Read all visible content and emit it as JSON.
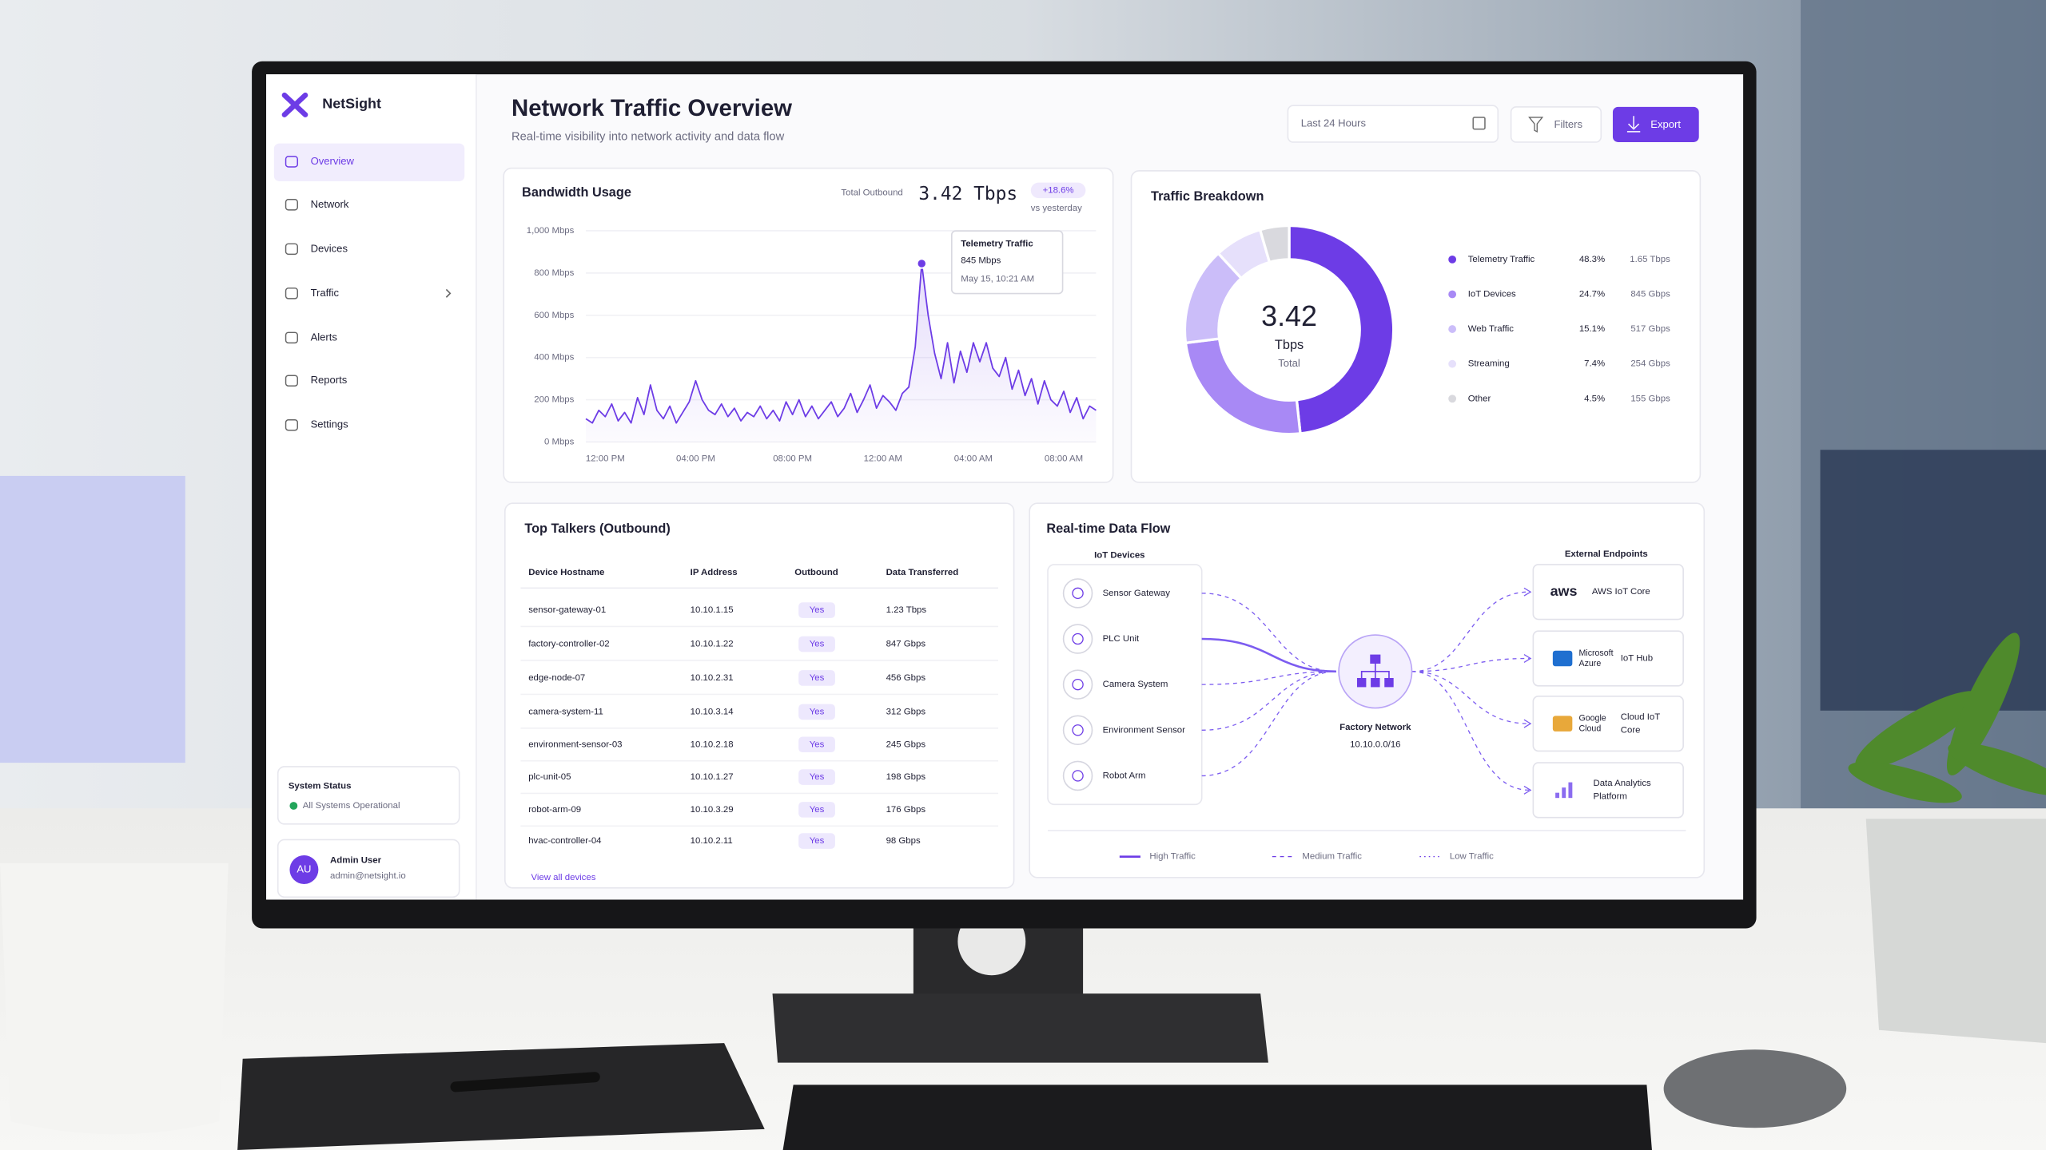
{
  "sidebar": {
    "brand": "NetSight",
    "nav": [
      "Overview",
      "Network",
      "Devices",
      "Traffic",
      "Alerts",
      "Reports",
      "Settings"
    ],
    "status": {
      "title": "System Status",
      "text": "All Systems Operational"
    },
    "user": {
      "initials": "AU",
      "name": "Admin User",
      "email": "admin@netsight.io"
    }
  },
  "header": {
    "title": "Network Traffic Overview",
    "subtitle": "Real-time visibility into network activity and data flow",
    "range": "Last 24 Hours",
    "filters": "Filters",
    "export": "Export"
  },
  "chart_data": [
    {
      "type": "line",
      "title": "Bandwidth Usage",
      "summary": {
        "label": "Total Outbound",
        "value": "3.42 Tbps",
        "change": "+18.6%",
        "note": "vs yesterday"
      },
      "categories": [
        null,
        null,
        null,
        "12:00 PM",
        null,
        null,
        null,
        null,
        null,
        null,
        null,
        null,
        null,
        null,
        null,
        null,
        null,
        "04:00 PM",
        null,
        null,
        null,
        null,
        null,
        null,
        null,
        null,
        null,
        null,
        null,
        null,
        null,
        null,
        "08:00 PM",
        null,
        null,
        null,
        null,
        null,
        null,
        null,
        null,
        null,
        null,
        null,
        null,
        null,
        "12:00 AM",
        null,
        null,
        null,
        null,
        null,
        null,
        null,
        null,
        null,
        null,
        null,
        null,
        null,
        "04:00 AM",
        null,
        null,
        null,
        null,
        null,
        null,
        null,
        null,
        null,
        null,
        null,
        null,
        null,
        "08:00 AM",
        null,
        null,
        null,
        null,
        null
      ],
      "values": [
        110,
        90,
        150,
        120,
        180,
        100,
        140,
        90,
        210,
        130,
        270,
        150,
        110,
        170,
        90,
        140,
        190,
        290,
        200,
        150,
        130,
        180,
        120,
        160,
        100,
        140,
        120,
        170,
        110,
        150,
        100,
        190,
        130,
        200,
        120,
        170,
        110,
        150,
        190,
        120,
        160,
        230,
        140,
        200,
        270,
        160,
        220,
        190,
        150,
        230,
        260,
        450,
        845,
        600,
        420,
        300,
        470,
        280,
        430,
        330,
        470,
        380,
        470,
        350,
        310,
        400,
        250,
        340,
        220,
        300,
        180,
        290,
        200,
        170,
        240,
        140,
        210,
        110,
        170,
        150
      ],
      "color": "#6d3ce6",
      "ylim": [
        0,
        1000
      ],
      "yticks": [
        {
          "value": 0,
          "label": "0 Mbps"
        },
        {
          "value": 200,
          "label": "200 Mbps"
        },
        {
          "value": 400,
          "label": "400 Mbps"
        },
        {
          "value": 600,
          "label": "600 Mbps"
        },
        {
          "value": 800,
          "label": "800 Mbps"
        },
        {
          "value": 1000,
          "label": "1,000 Mbps"
        }
      ],
      "grid": true,
      "tooltip": {
        "title": "Telemetry Traffic",
        "value": "845 Mbps",
        "time": "May 15, 10:21 AM"
      }
    },
    {
      "type": "pie",
      "title": "Traffic Breakdown",
      "center": {
        "value": "3.42",
        "unit": "Tbps",
        "label": "Total"
      },
      "categories": [
        "Telemetry Traffic",
        "IoT Devices",
        "Web Traffic",
        "Streaming",
        "Other"
      ],
      "values": [
        48.3,
        24.7,
        15.1,
        7.4,
        4.5
      ],
      "value_labels": [
        "48.3%",
        "24.7%",
        "15.1%",
        "7.4%",
        "4.5%"
      ],
      "amounts": [
        "1.65 Tbps",
        "845 Gbps",
        "517 Gbps",
        "254 Gbps",
        "155 Gbps"
      ],
      "colors": [
        "#6d3ce6",
        "#a889f5",
        "#cbbdf9",
        "#e6e0fb",
        "#d9d9de"
      ]
    }
  ],
  "top_talkers": {
    "title": "Top Talkers (Outbound)",
    "columns": [
      "Device Hostname",
      "IP Address",
      "Outbound",
      "Data Transferred"
    ],
    "rows": [
      [
        "sensor-gateway-01",
        "10.10.1.15",
        "Yes",
        "1.23 Tbps"
      ],
      [
        "factory-controller-02",
        "10.10.1.22",
        "Yes",
        "847 Gbps"
      ],
      [
        "edge-node-07",
        "10.10.2.31",
        "Yes",
        "456 Gbps"
      ],
      [
        "camera-system-11",
        "10.10.3.14",
        "Yes",
        "312 Gbps"
      ],
      [
        "environment-sensor-03",
        "10.10.2.18",
        "Yes",
        "245 Gbps"
      ],
      [
        "plc-unit-05",
        "10.10.1.27",
        "Yes",
        "198 Gbps"
      ],
      [
        "robot-arm-09",
        "10.10.3.29",
        "Yes",
        "176 Gbps"
      ],
      [
        "hvac-controller-04",
        "10.10.2.11",
        "Yes",
        "98 Gbps"
      ]
    ],
    "link": "View all devices"
  },
  "data_flow": {
    "title": "Real-time Data Flow",
    "sources_title": "IoT Devices",
    "sources": [
      {
        "name": "Sensor Gateway",
        "traffic": "medium"
      },
      {
        "name": "PLC Unit",
        "traffic": "high"
      },
      {
        "name": "Camera System",
        "traffic": "medium"
      },
      {
        "name": "Environment Sensor",
        "traffic": "medium"
      },
      {
        "name": "Robot Arm",
        "traffic": "medium"
      }
    ],
    "hub": {
      "name": "Factory Network",
      "subnet": "10.10.0.0/16"
    },
    "targets_title": "External Endpoints",
    "targets": [
      {
        "logo": [
          "aws"
        ],
        "name": [
          "AWS IoT Core"
        ]
      },
      {
        "logo": [
          "Microsoft",
          "Azure"
        ],
        "name": [
          "IoT Hub"
        ]
      },
      {
        "logo": [
          "Google",
          "Cloud"
        ],
        "name": [
          "Cloud IoT",
          "Core"
        ]
      },
      {
        "name": [
          "Data Analytics",
          "Platform"
        ]
      }
    ],
    "legend": [
      {
        "label": "High Traffic",
        "traffic": "high"
      },
      {
        "label": "Medium Traffic",
        "traffic": "medium"
      },
      {
        "label": "Low Traffic",
        "traffic": "low"
      }
    ]
  }
}
